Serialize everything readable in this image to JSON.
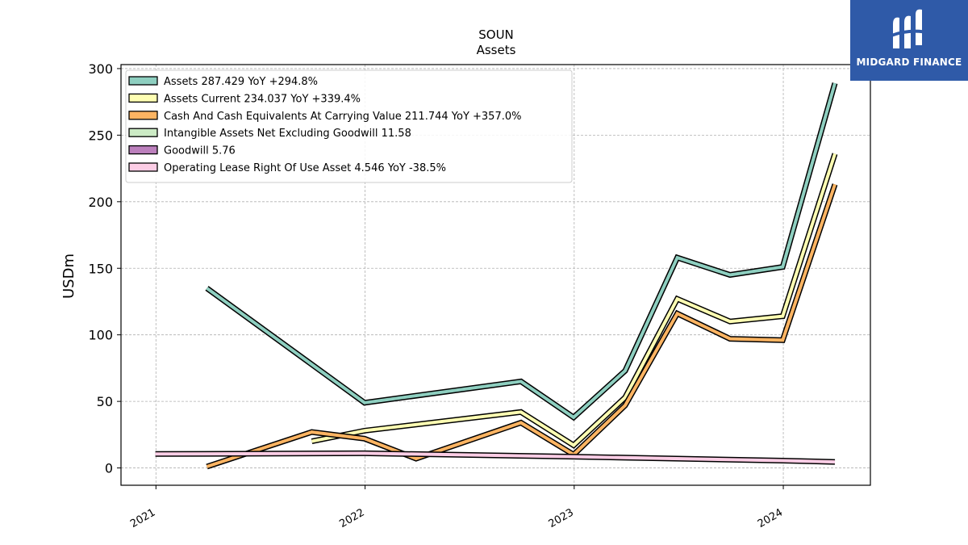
{
  "brand": {
    "name": "MIDGARD FINANCE",
    "bg_color": "#2f5aa8"
  },
  "chart_data": {
    "type": "line",
    "title": "SOUN",
    "subtitle": "Assets",
    "ylabel": "USDm",
    "xlabel": "",
    "ylim": [
      -13,
      303
    ],
    "xlim": [
      "2020-11-01",
      "2024-06-01"
    ],
    "yticks": [
      0,
      50,
      100,
      150,
      200,
      250,
      300
    ],
    "xticks": [
      "2021",
      "2022",
      "2023",
      "2024"
    ],
    "grid": true,
    "legend_position": "top-left",
    "series": [
      {
        "name": "Assets",
        "legend": "Assets  287.429 YoY +294.8%",
        "color": "#8ecfc0",
        "points": [
          {
            "x": "2021-03-31",
            "y": 135
          },
          {
            "x": "2021-12-31",
            "y": 49
          },
          {
            "x": "2022-09-30",
            "y": 65
          },
          {
            "x": "2022-12-31",
            "y": 38
          },
          {
            "x": "2023-03-31",
            "y": 73
          },
          {
            "x": "2023-06-30",
            "y": 158
          },
          {
            "x": "2023-09-30",
            "y": 145
          },
          {
            "x": "2023-12-31",
            "y": 151
          },
          {
            "x": "2024-03-31",
            "y": 289
          }
        ]
      },
      {
        "name": "Assets Current",
        "legend": "Assets Current  234.037 YoY +339.4%",
        "color": "#ffffb3",
        "points": [
          {
            "x": "2021-09-30",
            "y": 20
          },
          {
            "x": "2021-12-31",
            "y": 28
          },
          {
            "x": "2022-09-30",
            "y": 42
          },
          {
            "x": "2022-12-31",
            "y": 17
          },
          {
            "x": "2023-03-31",
            "y": 53
          },
          {
            "x": "2023-06-30",
            "y": 127
          },
          {
            "x": "2023-09-30",
            "y": 110
          },
          {
            "x": "2023-12-31",
            "y": 114
          },
          {
            "x": "2024-03-31",
            "y": 236
          }
        ]
      },
      {
        "name": "Cash And Cash Equivalents At Carrying Value",
        "legend": "Cash And Cash Equivalents At Carrying Value  211.744 YoY +357.0%",
        "color": "#fdb462",
        "points": [
          {
            "x": "2021-03-31",
            "y": 1
          },
          {
            "x": "2021-09-30",
            "y": 27
          },
          {
            "x": "2021-12-31",
            "y": 22
          },
          {
            "x": "2022-03-31",
            "y": 7
          },
          {
            "x": "2022-09-30",
            "y": 34
          },
          {
            "x": "2022-12-31",
            "y": 10
          },
          {
            "x": "2023-03-31",
            "y": 47
          },
          {
            "x": "2023-06-30",
            "y": 116
          },
          {
            "x": "2023-09-30",
            "y": 97
          },
          {
            "x": "2023-12-31",
            "y": 96
          },
          {
            "x": "2024-03-31",
            "y": 213
          }
        ]
      },
      {
        "name": "Intangible Assets Net Excluding Goodwill",
        "legend": "Intangible Assets Net Excluding Goodwill  11.58",
        "color": "#ccebc5",
        "points": []
      },
      {
        "name": "Goodwill",
        "legend": "Goodwill  5.76",
        "color": "#bc80bd",
        "points": []
      },
      {
        "name": "Operating Lease Right Of Use Asset",
        "legend": "Operating Lease Right Of Use Asset  4.546 YoY -38.5%",
        "color": "#fccde5",
        "points": [
          {
            "x": "2020-12-31",
            "y": 10.5
          },
          {
            "x": "2021-12-31",
            "y": 11
          },
          {
            "x": "2022-12-31",
            "y": 8.5
          },
          {
            "x": "2023-12-31",
            "y": 5.5
          },
          {
            "x": "2024-03-31",
            "y": 4.5
          }
        ]
      }
    ]
  }
}
